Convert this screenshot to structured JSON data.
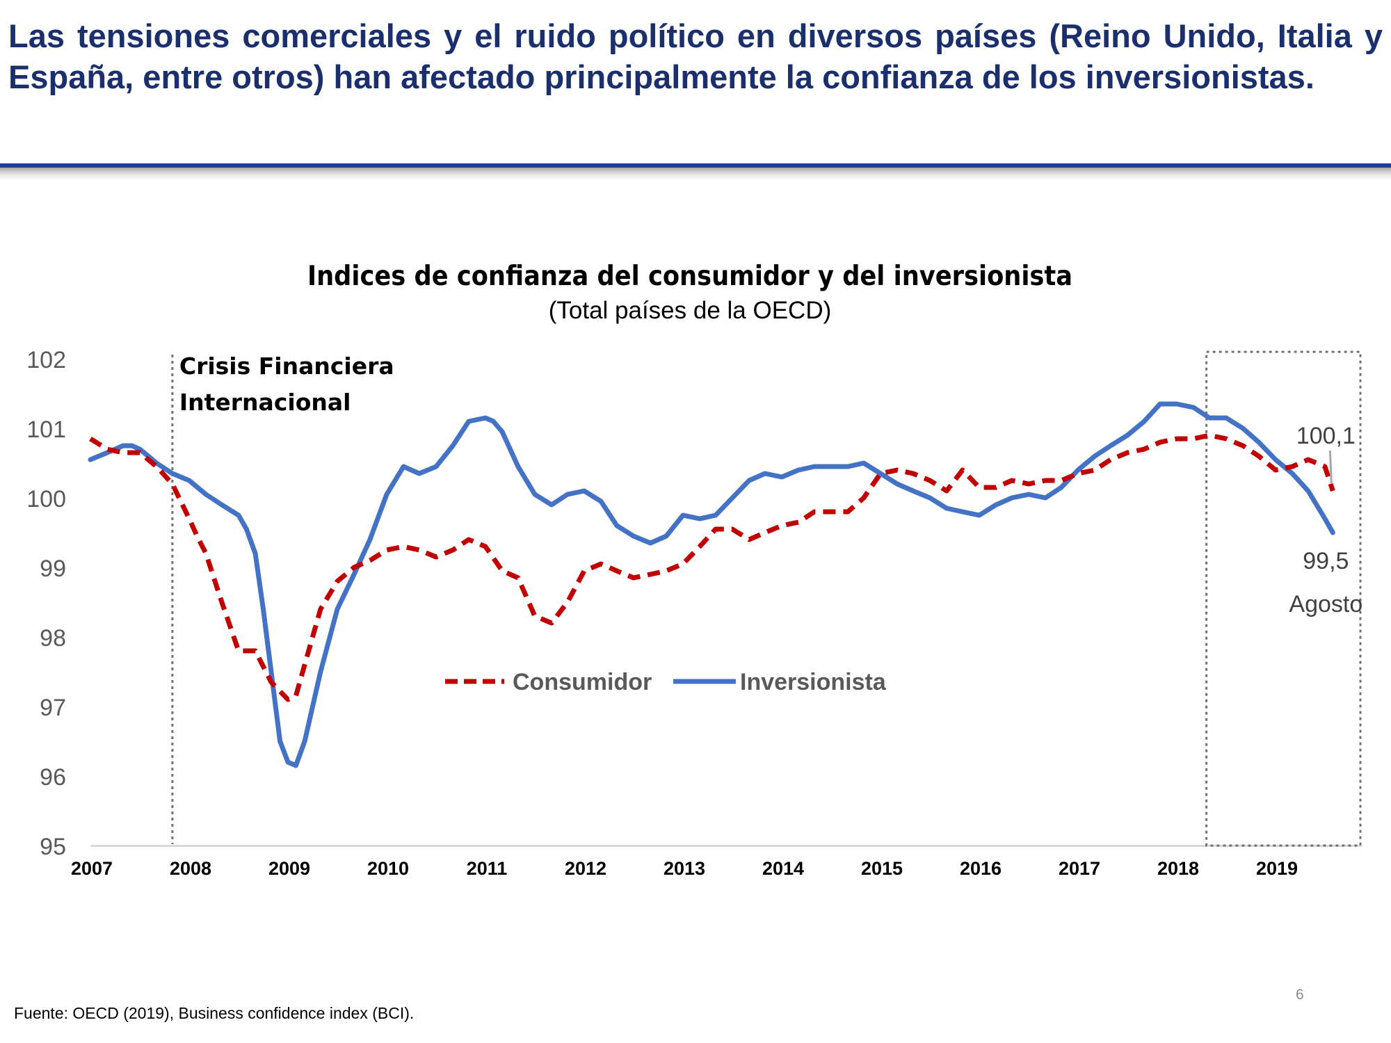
{
  "headline": "Las tensiones comerciales y el ruido político en diversos países (Reino Unido, Italia y España, entre otros) han afectado principalmente la confianza de los inversionistas.",
  "colors": {
    "headline": "#1a2f6b",
    "rule": "#1f3d8a",
    "consumidor": "#c00000",
    "inversionista": "#4472c4",
    "axis_text": "#595959",
    "legend_text": "#595959"
  },
  "chart_data": {
    "type": "line",
    "title": "Índices de confianza del consumidor y del inversionista",
    "subtitle": "(Total países de la OECD)",
    "xlabel": "",
    "ylabel": "",
    "ylim": [
      95,
      102
    ],
    "yticks": [
      "102",
      "101",
      "100",
      "99",
      "98",
      "97",
      "96",
      "95"
    ],
    "xticks": [
      "2007",
      "2008",
      "2009",
      "2010",
      "2011",
      "2012",
      "2013",
      "2014",
      "2015",
      "2016",
      "2017",
      "2018",
      "2019"
    ],
    "x_range": [
      2007.0,
      2020.0
    ],
    "grid": false,
    "legend_position": "center",
    "series": [
      {
        "name": "Consumidor",
        "style": "dashed",
        "color": "#c00000",
        "x": [
          2007.0,
          2007.17,
          2007.33,
          2007.5,
          2007.67,
          2007.83,
          2008.0,
          2008.08,
          2008.17,
          2008.33,
          2008.5,
          2008.67,
          2008.83,
          2009.0,
          2009.08,
          2009.17,
          2009.33,
          2009.5,
          2009.67,
          2009.83,
          2010.0,
          2010.17,
          2010.33,
          2010.5,
          2010.67,
          2010.83,
          2011.0,
          2011.17,
          2011.33,
          2011.5,
          2011.67,
          2011.75,
          2011.83,
          2012.0,
          2012.17,
          2012.33,
          2012.5,
          2012.67,
          2012.83,
          2013.0,
          2013.17,
          2013.33,
          2013.5,
          2013.67,
          2013.83,
          2014.0,
          2014.17,
          2014.33,
          2014.5,
          2014.67,
          2014.83,
          2015.0,
          2015.17,
          2015.33,
          2015.5,
          2015.67,
          2015.83,
          2016.0,
          2016.17,
          2016.33,
          2016.5,
          2016.67,
          2016.83,
          2017.0,
          2017.17,
          2017.33,
          2017.5,
          2017.67,
          2017.83,
          2018.0,
          2018.17,
          2018.33,
          2018.5,
          2018.67,
          2018.83,
          2019.0,
          2019.17,
          2019.33,
          2019.5,
          2019.58
        ],
        "values": [
          100.85,
          100.7,
          100.65,
          100.65,
          100.45,
          100.2,
          99.7,
          99.45,
          99.2,
          98.5,
          97.8,
          97.8,
          97.35,
          97.1,
          97.15,
          97.6,
          98.4,
          98.8,
          99.0,
          99.1,
          99.25,
          99.3,
          99.25,
          99.15,
          99.25,
          99.4,
          99.3,
          98.95,
          98.85,
          98.3,
          98.2,
          98.35,
          98.5,
          98.95,
          99.05,
          98.95,
          98.85,
          98.9,
          98.95,
          99.05,
          99.3,
          99.55,
          99.55,
          99.4,
          99.5,
          99.6,
          99.65,
          99.8,
          99.8,
          99.8,
          100.0,
          100.35,
          100.4,
          100.35,
          100.25,
          100.1,
          100.4,
          100.15,
          100.15,
          100.25,
          100.2,
          100.25,
          100.25,
          100.35,
          100.4,
          100.55,
          100.65,
          100.7,
          100.8,
          100.85,
          100.85,
          100.9,
          100.85,
          100.75,
          100.6,
          100.4,
          100.45,
          100.55,
          100.45,
          100.1
        ]
      },
      {
        "name": "Inversionista",
        "style": "solid",
        "color": "#4472c4",
        "x": [
          2007.0,
          2007.17,
          2007.33,
          2007.42,
          2007.5,
          2007.67,
          2007.83,
          2008.0,
          2008.17,
          2008.33,
          2008.5,
          2008.58,
          2008.67,
          2008.75,
          2008.83,
          2008.92,
          2009.0,
          2009.08,
          2009.17,
          2009.33,
          2009.5,
          2009.67,
          2009.83,
          2010.0,
          2010.17,
          2010.33,
          2010.5,
          2010.67,
          2010.83,
          2011.0,
          2011.08,
          2011.17,
          2011.33,
          2011.5,
          2011.67,
          2011.83,
          2012.0,
          2012.17,
          2012.33,
          2012.5,
          2012.67,
          2012.83,
          2013.0,
          2013.17,
          2013.33,
          2013.5,
          2013.67,
          2013.83,
          2014.0,
          2014.17,
          2014.33,
          2014.5,
          2014.67,
          2014.83,
          2015.0,
          2015.17,
          2015.33,
          2015.5,
          2015.67,
          2015.83,
          2016.0,
          2016.17,
          2016.33,
          2016.5,
          2016.67,
          2016.83,
          2017.0,
          2017.17,
          2017.33,
          2017.5,
          2017.67,
          2017.83,
          2018.0,
          2018.17,
          2018.33,
          2018.5,
          2018.67,
          2018.83,
          2019.0,
          2019.17,
          2019.33,
          2019.5,
          2019.58
        ],
        "values": [
          100.55,
          100.65,
          100.75,
          100.75,
          100.7,
          100.5,
          100.35,
          100.25,
          100.05,
          99.9,
          99.75,
          99.55,
          99.2,
          98.4,
          97.5,
          96.5,
          96.2,
          96.15,
          96.5,
          97.5,
          98.4,
          98.9,
          99.4,
          100.05,
          100.45,
          100.35,
          100.45,
          100.75,
          101.1,
          101.15,
          101.1,
          100.95,
          100.45,
          100.05,
          99.9,
          100.05,
          100.1,
          99.95,
          99.6,
          99.45,
          99.35,
          99.45,
          99.75,
          99.7,
          99.75,
          100.0,
          100.25,
          100.35,
          100.3,
          100.4,
          100.45,
          100.45,
          100.45,
          100.5,
          100.35,
          100.2,
          100.1,
          100.0,
          99.85,
          99.8,
          99.75,
          99.9,
          100.0,
          100.05,
          100.0,
          100.15,
          100.4,
          100.6,
          100.75,
          100.9,
          101.1,
          101.35,
          101.35,
          101.3,
          101.15,
          101.15,
          101.0,
          100.8,
          100.55,
          100.35,
          100.1,
          99.7,
          99.5
        ]
      }
    ],
    "annotations": {
      "crisis_label_line1": "Crisis Financiera",
      "crisis_label_line2": "Internacional",
      "crisis_x": 2007.83,
      "box_x_start": 2018.3,
      "consumidor_last_label": "100,1",
      "inversionista_last_label": "99,5",
      "month_label": "Agosto"
    }
  },
  "footer": {
    "source": "Fuente: OECD (2019), Business confidence index (BCI).",
    "page_number": "6"
  }
}
